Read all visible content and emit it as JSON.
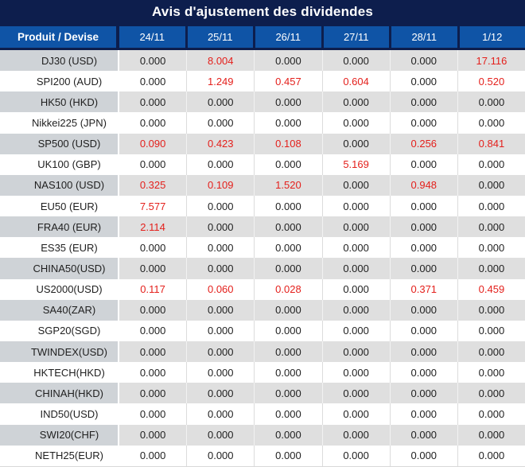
{
  "title": "Avis d'ajustement des dividendes",
  "table": {
    "product_header": "Produit / Devise",
    "date_headers": [
      "24/11",
      "25/11",
      "26/11",
      "27/11",
      "28/11",
      "1/12"
    ],
    "rows": [
      {
        "product": "DJ30 (USD)",
        "values": [
          "0.000",
          "8.004",
          "0.000",
          "0.000",
          "0.000",
          "17.116"
        ],
        "red": [
          false,
          true,
          false,
          false,
          false,
          true
        ]
      },
      {
        "product": "SPI200 (AUD)",
        "values": [
          "0.000",
          "1.249",
          "0.457",
          "0.604",
          "0.000",
          "0.520"
        ],
        "red": [
          false,
          true,
          true,
          true,
          false,
          true
        ]
      },
      {
        "product": "HK50 (HKD)",
        "values": [
          "0.000",
          "0.000",
          "0.000",
          "0.000",
          "0.000",
          "0.000"
        ],
        "red": [
          false,
          false,
          false,
          false,
          false,
          false
        ]
      },
      {
        "product": "Nikkei225 (JPN)",
        "values": [
          "0.000",
          "0.000",
          "0.000",
          "0.000",
          "0.000",
          "0.000"
        ],
        "red": [
          false,
          false,
          false,
          false,
          false,
          false
        ]
      },
      {
        "product": "SP500 (USD)",
        "values": [
          "0.090",
          "0.423",
          "0.108",
          "0.000",
          "0.256",
          "0.841"
        ],
        "red": [
          true,
          true,
          true,
          false,
          true,
          true
        ]
      },
      {
        "product": "UK100 (GBP)",
        "values": [
          "0.000",
          "0.000",
          "0.000",
          "5.169",
          "0.000",
          "0.000"
        ],
        "red": [
          false,
          false,
          false,
          true,
          false,
          false
        ]
      },
      {
        "product": "NAS100 (USD)",
        "values": [
          "0.325",
          "0.109",
          "1.520",
          "0.000",
          "0.948",
          "0.000"
        ],
        "red": [
          true,
          true,
          true,
          false,
          true,
          false
        ]
      },
      {
        "product": "EU50 (EUR)",
        "values": [
          "7.577",
          "0.000",
          "0.000",
          "0.000",
          "0.000",
          "0.000"
        ],
        "red": [
          true,
          false,
          false,
          false,
          false,
          false
        ]
      },
      {
        "product": "FRA40 (EUR)",
        "values": [
          "2.114",
          "0.000",
          "0.000",
          "0.000",
          "0.000",
          "0.000"
        ],
        "red": [
          true,
          false,
          false,
          false,
          false,
          false
        ]
      },
      {
        "product": "ES35 (EUR)",
        "values": [
          "0.000",
          "0.000",
          "0.000",
          "0.000",
          "0.000",
          "0.000"
        ],
        "red": [
          false,
          false,
          false,
          false,
          false,
          false
        ]
      },
      {
        "product": "CHINA50(USD)",
        "values": [
          "0.000",
          "0.000",
          "0.000",
          "0.000",
          "0.000",
          "0.000"
        ],
        "red": [
          false,
          false,
          false,
          false,
          false,
          false
        ]
      },
      {
        "product": "US2000(USD)",
        "values": [
          "0.117",
          "0.060",
          "0.028",
          "0.000",
          "0.371",
          "0.459"
        ],
        "red": [
          true,
          true,
          true,
          false,
          true,
          true
        ]
      },
      {
        "product": "SA40(ZAR)",
        "values": [
          "0.000",
          "0.000",
          "0.000",
          "0.000",
          "0.000",
          "0.000"
        ],
        "red": [
          false,
          false,
          false,
          false,
          false,
          false
        ]
      },
      {
        "product": "SGP20(SGD)",
        "values": [
          "0.000",
          "0.000",
          "0.000",
          "0.000",
          "0.000",
          "0.000"
        ],
        "red": [
          false,
          false,
          false,
          false,
          false,
          false
        ]
      },
      {
        "product": "TWINDEX(USD)",
        "values": [
          "0.000",
          "0.000",
          "0.000",
          "0.000",
          "0.000",
          "0.000"
        ],
        "red": [
          false,
          false,
          false,
          false,
          false,
          false
        ]
      },
      {
        "product": "HKTECH(HKD)",
        "values": [
          "0.000",
          "0.000",
          "0.000",
          "0.000",
          "0.000",
          "0.000"
        ],
        "red": [
          false,
          false,
          false,
          false,
          false,
          false
        ]
      },
      {
        "product": "CHINAH(HKD)",
        "values": [
          "0.000",
          "0.000",
          "0.000",
          "0.000",
          "0.000",
          "0.000"
        ],
        "red": [
          false,
          false,
          false,
          false,
          false,
          false
        ]
      },
      {
        "product": "IND50(USD)",
        "values": [
          "0.000",
          "0.000",
          "0.000",
          "0.000",
          "0.000",
          "0.000"
        ],
        "red": [
          false,
          false,
          false,
          false,
          false,
          false
        ]
      },
      {
        "product": "SWI20(CHF)",
        "values": [
          "0.000",
          "0.000",
          "0.000",
          "0.000",
          "0.000",
          "0.000"
        ],
        "red": [
          false,
          false,
          false,
          false,
          false,
          false
        ]
      },
      {
        "product": "NETH25(EUR)",
        "values": [
          "0.000",
          "0.000",
          "0.000",
          "0.000",
          "0.000",
          "0.000"
        ],
        "red": [
          false,
          false,
          false,
          false,
          false,
          false
        ]
      }
    ]
  },
  "colors": {
    "navy": "#0d1e4d",
    "blue": "#0f54a6",
    "header_text": "#ffffff",
    "red": "#e4201c",
    "gray_product": "#cfd3d7",
    "gray_value": "#dfdfdf",
    "value_text": "#1f1f1f"
  }
}
